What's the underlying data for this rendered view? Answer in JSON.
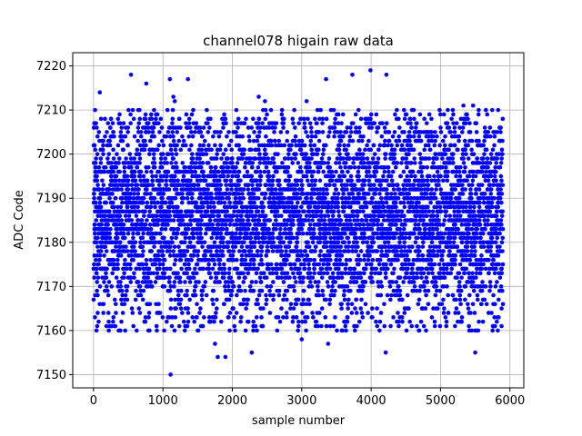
{
  "chart_data": {
    "type": "scatter",
    "title": "channel078 higain raw data",
    "xlabel": "sample number",
    "ylabel": "ADC Code",
    "xlim": [
      -300,
      6200
    ],
    "ylim": [
      7147,
      7223
    ],
    "xticks": [
      0,
      1000,
      2000,
      3000,
      4000,
      5000,
      6000
    ],
    "yticks": [
      7150,
      7160,
      7170,
      7180,
      7190,
      7200,
      7210,
      7220
    ],
    "grid": true,
    "marker": "circle",
    "colors": {
      "points": "#0000ff",
      "grid": "#b0b0b0",
      "axes": "#000000"
    },
    "series": [
      {
        "n_points": 5900,
        "sample_range": [
          0,
          5900
        ],
        "approx_center": 7186,
        "approx_band": [
          7174,
          7199
        ],
        "outliers": [
          {
            "x": 10,
            "y": 7207
          },
          {
            "x": 35,
            "y": 7207
          },
          {
            "x": 90,
            "y": 7214
          },
          {
            "x": 20,
            "y": 7163
          },
          {
            "x": 60,
            "y": 7164
          },
          {
            "x": 540,
            "y": 7218
          },
          {
            "x": 760,
            "y": 7216
          },
          {
            "x": 750,
            "y": 7209
          },
          {
            "x": 1100,
            "y": 7217
          },
          {
            "x": 1150,
            "y": 7213
          },
          {
            "x": 1170,
            "y": 7212
          },
          {
            "x": 1360,
            "y": 7217
          },
          {
            "x": 1650,
            "y": 7205
          },
          {
            "x": 1110,
            "y": 7150
          },
          {
            "x": 1750,
            "y": 7157
          },
          {
            "x": 1790,
            "y": 7154
          },
          {
            "x": 1900,
            "y": 7154
          },
          {
            "x": 2280,
            "y": 7155
          },
          {
            "x": 2380,
            "y": 7213
          },
          {
            "x": 2470,
            "y": 7212
          },
          {
            "x": 3070,
            "y": 7212
          },
          {
            "x": 3350,
            "y": 7217
          },
          {
            "x": 3730,
            "y": 7218
          },
          {
            "x": 3990,
            "y": 7219
          },
          {
            "x": 4220,
            "y": 7218
          },
          {
            "x": 4210,
            "y": 7155
          },
          {
            "x": 3000,
            "y": 7158
          },
          {
            "x": 3380,
            "y": 7157
          },
          {
            "x": 5330,
            "y": 7211
          },
          {
            "x": 5470,
            "y": 7211
          },
          {
            "x": 5500,
            "y": 7155
          },
          {
            "x": 5830,
            "y": 7210
          },
          {
            "x": 5880,
            "y": 7161
          },
          {
            "x": 4510,
            "y": 7160
          }
        ]
      }
    ]
  }
}
